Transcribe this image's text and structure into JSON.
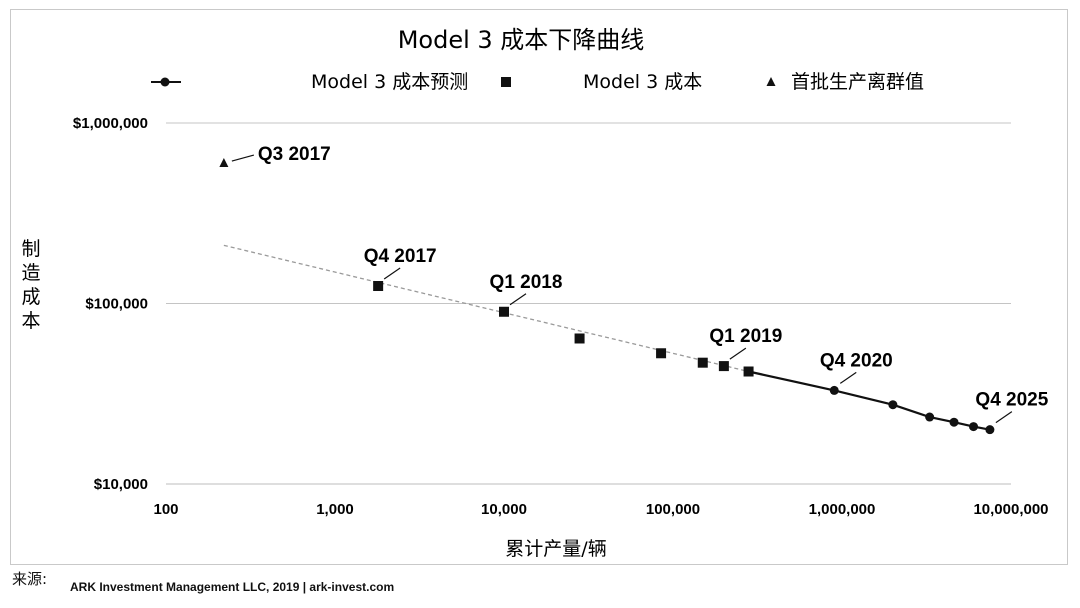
{
  "chart_data": {
    "type": "scatter",
    "title": "Model 3 成本下降曲线",
    "xlabel": "累计产量/辆",
    "ylabel": "制造成本",
    "x_scale": "log",
    "y_scale": "log",
    "xlim": [
      100,
      10000000
    ],
    "ylim": [
      10000,
      1000000
    ],
    "x_ticks": [
      100,
      1000,
      10000,
      100000,
      1000000,
      10000000
    ],
    "x_tick_labels": [
      "100",
      "1,000",
      "10,000",
      "100,000",
      "1,000,000",
      "10,000,000"
    ],
    "y_ticks": [
      1000000,
      100000,
      10000
    ],
    "y_tick_labels": [
      "$1,000,000",
      "$100,000",
      "$10,000"
    ],
    "grid": "horizontal major lines",
    "legend_position": "top",
    "series": [
      {
        "name": "Model 3 成本预测",
        "marker": "circle",
        "line": "solid",
        "color": "#111111",
        "x": [
          280000,
          900000,
          2000000,
          3300000,
          4600000,
          6000000,
          7500000
        ],
        "y": [
          42000,
          33000,
          27500,
          23500,
          22000,
          20800,
          20000
        ]
      },
      {
        "name": "Model 3 成本",
        "marker": "square",
        "color": "#111111",
        "x": [
          1800,
          10000,
          28000,
          85000,
          150000,
          200000,
          280000
        ],
        "y": [
          125000,
          90000,
          64000,
          53000,
          47000,
          45000,
          42000
        ]
      },
      {
        "name": "首批生产离群值",
        "marker": "triangle",
        "color": "#111111",
        "x": [
          220
        ],
        "y": [
          600000
        ]
      }
    ],
    "trend_line": {
      "style": "dashed",
      "color": "#9a9a9a",
      "x": [
        220,
        280000
      ],
      "y": [
        210000,
        42000
      ]
    },
    "annotations": [
      {
        "text": "Q3 2017",
        "x": 220,
        "y": 600000,
        "arrow": "left"
      },
      {
        "text": "Q4 2017",
        "x": 1800,
        "y": 125000,
        "arrow": "down"
      },
      {
        "text": "Q1 2018",
        "x": 10000,
        "y": 90000,
        "arrow": "down"
      },
      {
        "text": "Q1 2019",
        "x": 200000,
        "y": 45000,
        "arrow": "down"
      },
      {
        "text": "Q4 2020",
        "x": 900000,
        "y": 33000,
        "arrow": "down"
      },
      {
        "text": "Q4 2025",
        "x": 7500000,
        "y": 20000,
        "arrow": "down"
      }
    ]
  },
  "source": {
    "label": "来源:",
    "text": "ARK Investment Management LLC, 2019 | ark-invest.com"
  }
}
